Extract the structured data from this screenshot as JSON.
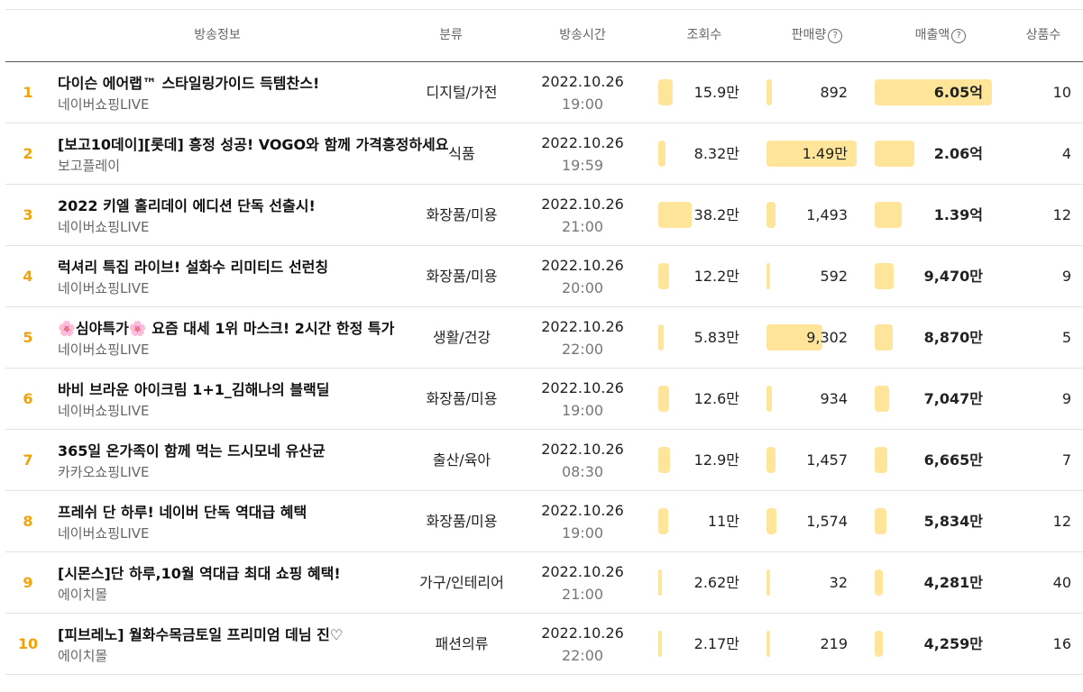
{
  "headers": {
    "info": "방송정보",
    "category": "분류",
    "time": "방송시간",
    "views": "조회수",
    "sales_qty": "판매량",
    "revenue": "매출액",
    "products": "상품수",
    "help_glyph": "?"
  },
  "colors": {
    "bar": "#ffe599",
    "rank": "#f0a30a"
  },
  "rows": [
    {
      "rank": "1",
      "title": "다이슨 에어랩™ 스타일링가이드 득템찬스!",
      "seller": "네이버쇼핑LIVE",
      "category": "디지털/가전",
      "date": "2022.10.26",
      "time": "19:00",
      "views": "15.9만",
      "views_level": 0.42,
      "sales": "892",
      "sales_level": 0.06,
      "revenue": "6.05억",
      "revenue_level": 1.0,
      "count": "10"
    },
    {
      "rank": "2",
      "title": "[보고10데이][롯데] 흥정 성공! VOGO와 함께 가격흥정하세요",
      "seller": "보고플레이",
      "category": "식품",
      "date": "2022.10.26",
      "time": "19:59",
      "views": "8.32만",
      "views_level": 0.22,
      "sales": "1.49만",
      "sales_level": 1.0,
      "revenue": "2.06억",
      "revenue_level": 0.34,
      "count": "4"
    },
    {
      "rank": "3",
      "title": "2022 키엘 홀리데이 에디션 단독 선출시!",
      "seller": "네이버쇼핑LIVE",
      "category": "화장품/미용",
      "date": "2022.10.26",
      "time": "21:00",
      "views": "38.2만",
      "views_level": 1.0,
      "sales": "1,493",
      "sales_level": 0.1,
      "revenue": "1.39억",
      "revenue_level": 0.23,
      "count": "12"
    },
    {
      "rank": "4",
      "title": "럭셔리 특집 라이브! 설화수 리미티드 선런칭",
      "seller": "네이버쇼핑LIVE",
      "category": "화장품/미용",
      "date": "2022.10.26",
      "time": "20:00",
      "views": "12.2만",
      "views_level": 0.32,
      "sales": "592",
      "sales_level": 0.04,
      "revenue": "9,470만",
      "revenue_level": 0.16,
      "count": "9"
    },
    {
      "rank": "5",
      "title": "🌸심야특가🌸 요즘 대세 1위 마스크! 2시간 한정 특가",
      "seller": "네이버쇼핑LIVE",
      "category": "생활/건강",
      "date": "2022.10.26",
      "time": "22:00",
      "views": "5.83만",
      "views_level": 0.15,
      "sales": "9,302",
      "sales_level": 0.62,
      "revenue": "8,870만",
      "revenue_level": 0.15,
      "count": "5"
    },
    {
      "rank": "6",
      "title": "바비 브라운 아이크림 1+1_김해나의 블랙딜",
      "seller": "네이버쇼핑LIVE",
      "category": "화장품/미용",
      "date": "2022.10.26",
      "time": "19:00",
      "views": "12.6만",
      "views_level": 0.33,
      "sales": "934",
      "sales_level": 0.06,
      "revenue": "7,047만",
      "revenue_level": 0.12,
      "count": "9"
    },
    {
      "rank": "7",
      "title": "365일 온가족이 함께 먹는 드시모네 유산균",
      "seller": "카카오쇼핑LIVE",
      "category": "출산/육아",
      "date": "2022.10.26",
      "time": "08:30",
      "views": "12.9만",
      "views_level": 0.34,
      "sales": "1,457",
      "sales_level": 0.1,
      "revenue": "6,665만",
      "revenue_level": 0.11,
      "count": "7"
    },
    {
      "rank": "8",
      "title": "프레쉬 단 하루! 네이버 단독 역대급 혜택",
      "seller": "네이버쇼핑LIVE",
      "category": "화장품/미용",
      "date": "2022.10.26",
      "time": "19:00",
      "views": "11만",
      "views_level": 0.29,
      "sales": "1,574",
      "sales_level": 0.11,
      "revenue": "5,834만",
      "revenue_level": 0.1,
      "count": "12"
    },
    {
      "rank": "9",
      "title": "[시몬스]단 하루,10월 역대급 최대 쇼핑 혜택!",
      "seller": "에이치몰",
      "category": "가구/인테리어",
      "date": "2022.10.26",
      "time": "21:00",
      "views": "2.62만",
      "views_level": 0.07,
      "sales": "32",
      "sales_level": 0.0,
      "revenue": "4,281만",
      "revenue_level": 0.07,
      "count": "40"
    },
    {
      "rank": "10",
      "title": "[피브레노] 월화수목금토일 프리미엄 데님 진♡",
      "seller": "에이치몰",
      "category": "패션의류",
      "date": "2022.10.26",
      "time": "22:00",
      "views": "2.17만",
      "views_level": 0.06,
      "sales": "219",
      "sales_level": 0.01,
      "revenue": "4,259만",
      "revenue_level": 0.07,
      "count": "16"
    }
  ]
}
